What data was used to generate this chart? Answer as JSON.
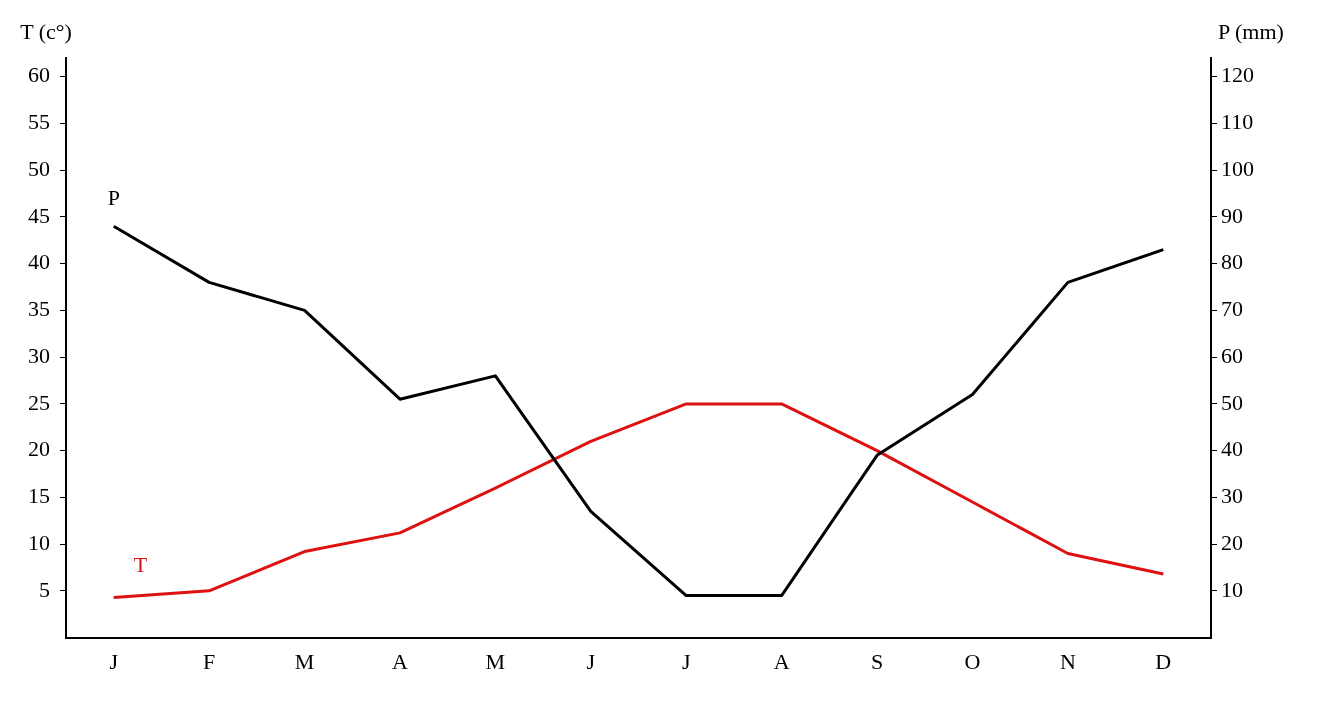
{
  "chart_data": {
    "type": "line",
    "ylabel": "T (c°)",
    "y2label": "P (mm)",
    "categories": [
      "J",
      "F",
      "M",
      "A",
      "M",
      "J",
      "J",
      "A",
      "S",
      "O",
      "N",
      "D"
    ],
    "series": [
      {
        "name": "P",
        "color": "#000000",
        "axis": "y2",
        "values": [
          88,
          76,
          70,
          51,
          56,
          27,
          9,
          9,
          39,
          52,
          76,
          83
        ]
      },
      {
        "name": "T",
        "color": "#dd1111",
        "axis": "y",
        "values": [
          4.3,
          5,
          9.2,
          11.2,
          16,
          21,
          25,
          25,
          20,
          14.5,
          9,
          6.8
        ]
      }
    ],
    "ylim": [
      0,
      62
    ],
    "yticks": [
      5,
      10,
      15,
      20,
      25,
      30,
      35,
      40,
      45,
      50,
      55,
      60
    ],
    "y2lim": [
      0,
      124
    ],
    "y2ticks": [
      10,
      20,
      30,
      40,
      50,
      60,
      70,
      80,
      90,
      100,
      110,
      120
    ],
    "grid": false,
    "legend": false,
    "marker": "none",
    "line_style": "solid"
  }
}
